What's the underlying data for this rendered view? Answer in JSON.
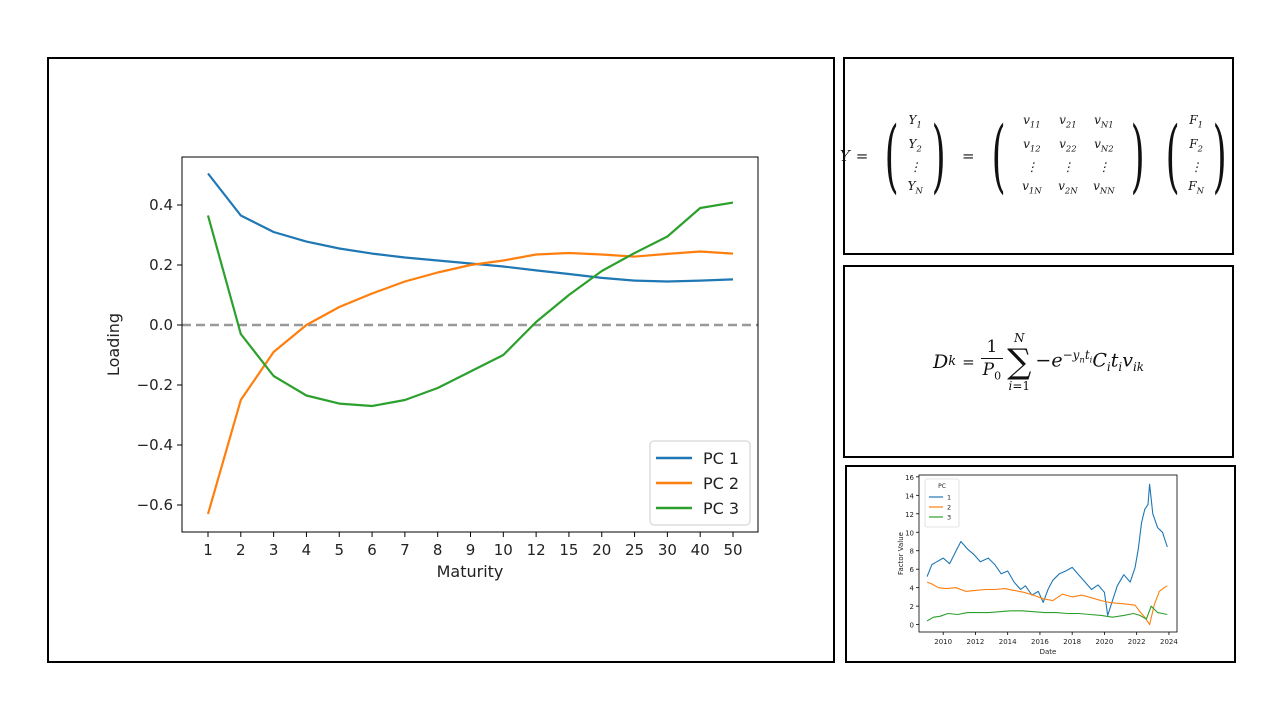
{
  "chart_data": [
    {
      "type": "line",
      "title": "",
      "xlabel": "Maturity",
      "ylabel": "Loading",
      "categories": [
        "1",
        "2",
        "3",
        "4",
        "5",
        "6",
        "7",
        "8",
        "9",
        "10",
        "12",
        "15",
        "20",
        "25",
        "30",
        "40",
        "50"
      ],
      "yticks": [
        "0.4",
        "0.2",
        "0.0",
        "−0.2",
        "−0.4",
        "−0.6"
      ],
      "ytick_values": [
        0.4,
        0.2,
        0.0,
        -0.2,
        -0.4,
        -0.6
      ],
      "ylim": [
        -0.69,
        0.56
      ],
      "reference_line": {
        "y": 0.0,
        "style": "dashed",
        "color": "#999999"
      },
      "legend_placement": "lower-right",
      "series": [
        {
          "name": "PC 1",
          "color": "#1f77b4",
          "values": [
            0.505,
            0.365,
            0.31,
            0.278,
            0.255,
            0.238,
            0.225,
            0.215,
            0.205,
            0.195,
            0.182,
            0.17,
            0.157,
            0.148,
            0.145,
            0.148,
            0.152
          ]
        },
        {
          "name": "PC 2",
          "color": "#ff7f0e",
          "values": [
            -0.63,
            -0.25,
            -0.09,
            0.0,
            0.06,
            0.105,
            0.145,
            0.175,
            0.2,
            0.215,
            0.235,
            0.24,
            0.235,
            0.228,
            0.237,
            0.245,
            0.238
          ]
        },
        {
          "name": "PC 3",
          "color": "#2ca02c",
          "values": [
            0.365,
            -0.03,
            -0.17,
            -0.235,
            -0.262,
            -0.27,
            -0.25,
            -0.21,
            -0.155,
            -0.1,
            0.01,
            0.1,
            0.18,
            0.24,
            0.295,
            0.39,
            0.408
          ]
        }
      ]
    },
    {
      "type": "line",
      "title": "",
      "xlabel": "Date",
      "ylabel": "Factor Value",
      "xticks": [
        "2010",
        "2012",
        "2014",
        "2016",
        "2018",
        "2020",
        "2022",
        "2024"
      ],
      "xtick_values": [
        2010,
        2012,
        2014,
        2016,
        2018,
        2020,
        2022,
        2024
      ],
      "yticks": [
        "0",
        "2",
        "4",
        "6",
        "8",
        "10",
        "12",
        "14",
        "16"
      ],
      "ytick_values": [
        0,
        2,
        4,
        6,
        8,
        10,
        12,
        14,
        16
      ],
      "xlim": [
        2008.5,
        2024.5
      ],
      "ylim": [
        -0.8,
        16.2
      ],
      "legend_title": "PC",
      "legend_placement": "top-left",
      "series": [
        {
          "name": "1",
          "color": "#1f77b4",
          "x": [
            2009.0,
            2009.3,
            2009.6,
            2010.0,
            2010.4,
            2010.8,
            2011.1,
            2011.5,
            2011.9,
            2012.3,
            2012.8,
            2013.2,
            2013.6,
            2014.0,
            2014.4,
            2014.8,
            2015.1,
            2015.5,
            2015.9,
            2016.2,
            2016.5,
            2016.8,
            2017.2,
            2017.6,
            2018.0,
            2018.4,
            2018.8,
            2019.2,
            2019.6,
            2020.0,
            2020.2,
            2020.5,
            2020.8,
            2021.2,
            2021.6,
            2021.9,
            2022.1,
            2022.3,
            2022.5,
            2022.7,
            2022.8,
            2023.0,
            2023.3,
            2023.6,
            2023.9
          ],
          "values": [
            5.2,
            6.5,
            6.8,
            7.2,
            6.6,
            8.0,
            9.0,
            8.2,
            7.6,
            6.8,
            7.2,
            6.5,
            5.5,
            5.8,
            4.6,
            3.8,
            4.2,
            3.2,
            3.6,
            2.4,
            3.8,
            4.8,
            5.5,
            5.8,
            6.2,
            5.4,
            4.6,
            3.8,
            4.3,
            3.5,
            1.0,
            2.6,
            4.2,
            5.4,
            4.6,
            6.2,
            8.2,
            11.0,
            12.5,
            13.0,
            15.2,
            12.0,
            10.5,
            10.0,
            8.4
          ]
        },
        {
          "name": "2",
          "color": "#ff7f0e",
          "x": [
            2009.0,
            2009.3,
            2009.7,
            2010.2,
            2010.8,
            2011.4,
            2012.0,
            2012.6,
            2013.2,
            2013.8,
            2014.4,
            2015.0,
            2015.6,
            2016.2,
            2016.8,
            2017.4,
            2018.0,
            2018.6,
            2019.2,
            2019.8,
            2020.3,
            2020.9,
            2021.5,
            2021.9,
            2022.2,
            2022.5,
            2022.8,
            2023.1,
            2023.4,
            2023.7,
            2023.9
          ],
          "values": [
            4.6,
            4.4,
            4.0,
            3.9,
            4.0,
            3.6,
            3.7,
            3.8,
            3.8,
            3.9,
            3.7,
            3.5,
            3.2,
            2.8,
            2.6,
            3.3,
            3.0,
            3.2,
            2.9,
            2.6,
            2.4,
            2.3,
            2.2,
            2.1,
            1.4,
            0.8,
            0.0,
            2.2,
            3.6,
            4.0,
            4.2
          ]
        },
        {
          "name": "3",
          "color": "#2ca02c",
          "x": [
            2009.0,
            2009.4,
            2009.8,
            2010.3,
            2010.9,
            2011.5,
            2012.1,
            2012.8,
            2013.5,
            2014.2,
            2014.9,
            2015.6,
            2016.3,
            2017.0,
            2017.7,
            2018.4,
            2019.1,
            2019.8,
            2020.5,
            2021.2,
            2021.8,
            2022.2,
            2022.6,
            2022.9,
            2023.3,
            2023.6,
            2023.9
          ],
          "values": [
            0.4,
            0.8,
            0.9,
            1.2,
            1.1,
            1.3,
            1.3,
            1.3,
            1.4,
            1.5,
            1.5,
            1.4,
            1.3,
            1.3,
            1.2,
            1.2,
            1.1,
            1.0,
            0.8,
            1.0,
            1.2,
            1.0,
            0.6,
            2.0,
            1.3,
            1.2,
            1.1
          ]
        }
      ]
    }
  ]
}
